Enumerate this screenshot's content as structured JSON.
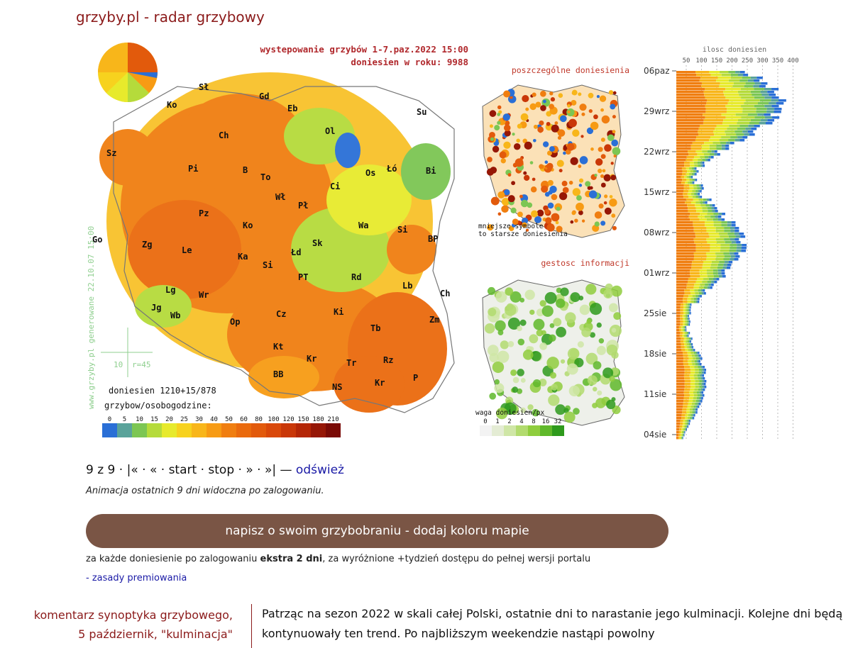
{
  "header": {
    "site_title": "grzyby.pl - radar grzybowy"
  },
  "map": {
    "title_line1": "wystepowanie grzybów 1-7.paz.2022 15:00",
    "title_line2": "doniesien w roku: 9988",
    "generated_note": "www.grzyby.pl generowane 22.10.07 15:00",
    "scale_note_left": "10",
    "scale_note_right": "r=45",
    "reports_count": "doniesien 1210+15/878",
    "legend_title": "grzybow/osobogodzine:",
    "legend_labels": [
      "0",
      "5",
      "10",
      "15",
      "20",
      "25",
      "30",
      "40",
      "50",
      "60",
      "80",
      "100",
      "120",
      "150",
      "180",
      "210"
    ],
    "legend_colors": [
      "#2a6fd6",
      "#5aa39a",
      "#7cc653",
      "#b5db3b",
      "#e7ea2c",
      "#f7d21e",
      "#f8b61a",
      "#f79b14",
      "#f07e10",
      "#ea6a0d",
      "#e25a0c",
      "#d9480a",
      "#c93708",
      "#b42606",
      "#961706",
      "#7a0a05"
    ],
    "city_labels": [
      "Sł",
      "Gd",
      "Ko",
      "Eb",
      "Su",
      "Ol",
      "Sz",
      "Ch",
      "Pi",
      "B",
      "To",
      "Bi",
      "Łó",
      "Os",
      "Ci",
      "Wł",
      "Pł",
      "Wa",
      "Pz",
      "Go",
      "Ko",
      "Sk",
      "Zg",
      "Le",
      "Ka",
      "Si",
      "BP",
      "Łd",
      "Si",
      "PT",
      "Rd",
      "Lb",
      "Ch",
      "Lg",
      "Wr",
      "Op",
      "Cz",
      "Ki",
      "Jg",
      "Wb",
      "Kt",
      "Tb",
      "Zm",
      "Kr",
      "Tr",
      "Rz",
      "BB",
      "NS",
      "Kr",
      "P"
    ]
  },
  "single_reports": {
    "title": "poszczególne doniesienia",
    "note_line1": "mniejsze symbole",
    "note_line2": "to starsze doniesienia"
  },
  "info_density": {
    "title": "gestosc informacji",
    "legend_title": "waga doniesien/px",
    "legend_labels": [
      "0",
      "1",
      "2",
      "4",
      "8",
      "16",
      "32"
    ],
    "legend_colors": [
      "#f3f3f3",
      "#e4ecd4",
      "#cfe6a6",
      "#b2db6e",
      "#8fcd3d",
      "#5fb82a",
      "#2e9a1c"
    ]
  },
  "chart_data": {
    "type": "bar",
    "title": "ilosc doniesien",
    "x_tick_labels": [
      "50",
      "100",
      "150",
      "200",
      "250",
      "300",
      "350",
      "400"
    ],
    "y_labels": [
      "06paz",
      "29wrz",
      "22wrz",
      "15wrz",
      "08wrz",
      "01wrz",
      "25sie",
      "18sie",
      "11sie",
      "04sie"
    ]
  },
  "controls": {
    "counter": "9 z 9",
    "first": "|«",
    "prev": "«",
    "start": "start",
    "stop": "stop",
    "next": "»",
    "last": "»|",
    "refresh": "odśwież",
    "sep": "·",
    "dash": "—"
  },
  "animation_note": "Animacja ostatnich 9 dni widoczna po zalogowaniu.",
  "cta": {
    "label": "napisz o swoim grzybobraniu - dodaj koloru mapie"
  },
  "bonus": {
    "before": "za każde doniesienie po zalogowaniu ",
    "bold": "ekstra 2 dni",
    "after": ", za wyróżnione +tydzień dostępu do pełnej wersji portalu"
  },
  "rules_link": "- zasady premiowania",
  "comment": {
    "label_line1": "komentarz synoptyka grzybowego,",
    "label_line2": "5 październik, \"kulminacja\"",
    "text": "Patrząc na sezon 2022 w skali całej Polski, ostatnie dni to narastanie jego kulminacji. Kolejne dni będą kontynuowały ten trend. Po najbliższym weekendzie nastąpi powolny"
  }
}
